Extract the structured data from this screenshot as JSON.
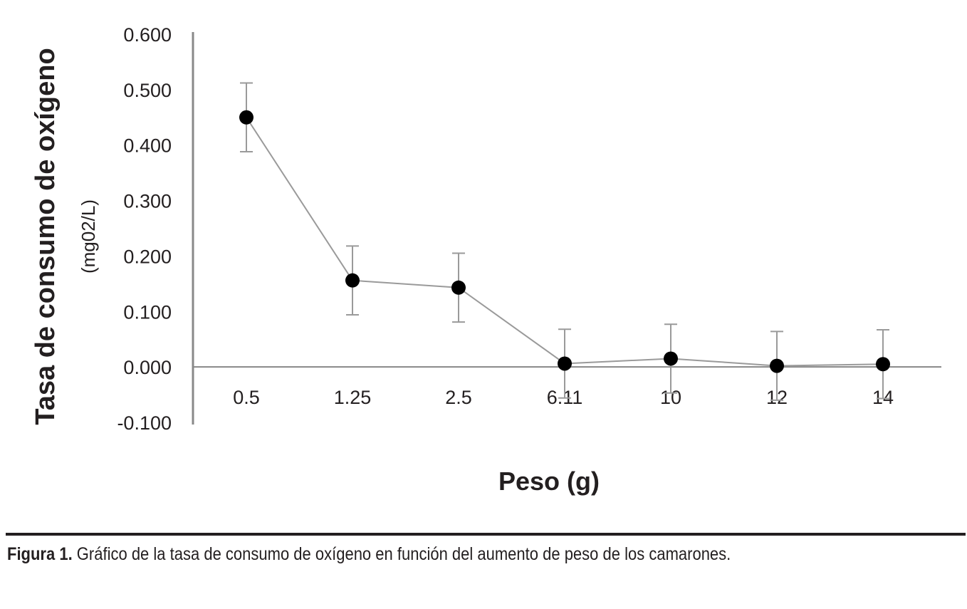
{
  "chart_data": {
    "type": "line",
    "categories": [
      "0.5",
      "1.25",
      "2.5",
      "6.11",
      "10",
      "12",
      "14"
    ],
    "series": [
      {
        "values": [
          0.45,
          0.156,
          0.143,
          0.006,
          0.015,
          0.002,
          0.005
        ],
        "error": [
          0.062,
          0.062,
          0.062,
          0.062,
          0.062,
          0.062,
          0.062
        ]
      }
    ],
    "xlabel": "Peso (g)",
    "ylabel": "Tasa de consumo de oxígeno",
    "ylabel_units": "(mg02/L)",
    "ylim": [
      -0.1,
      0.6
    ],
    "yticks": [
      "0.600",
      "0.500",
      "0.400",
      "0.300",
      "0.200",
      "0.100",
      "0.000",
      "-0.100"
    ],
    "ytick_values": [
      0.6,
      0.5,
      0.4,
      0.3,
      0.2,
      0.1,
      0.0,
      -0.1
    ],
    "grid": false,
    "legend": "none",
    "colors": {
      "axis": "#888888",
      "line": "#9a9a9a",
      "marker": "#000000",
      "error_bar": "#9a9a9a",
      "text": "#231f20"
    }
  },
  "caption": {
    "label": "Figura 1.",
    "text": " Gráfico de la tasa de consumo de oxígeno en función del aumento de peso de los camarones."
  }
}
